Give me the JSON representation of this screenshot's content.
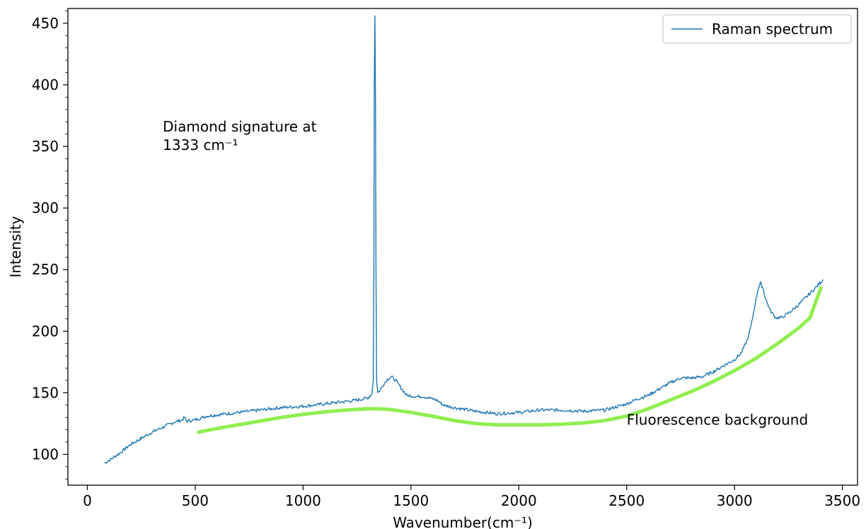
{
  "chart_data": {
    "type": "line",
    "title": "",
    "xlabel": "Wavenumber(cm⁻¹)",
    "ylabel": "Intensity",
    "xlim": [
      -90,
      3570
    ],
    "ylim": [
      75,
      462
    ],
    "xticks": [
      0,
      500,
      1000,
      1500,
      2000,
      2500,
      3000,
      3500
    ],
    "yticks": [
      100,
      150,
      200,
      250,
      300,
      350,
      400,
      450
    ],
    "grid": false,
    "legend_position": "top-right",
    "series": [
      {
        "name": "Raman spectrum",
        "color": "#1f77b4",
        "x": [
          80,
          100,
          150,
          200,
          250,
          300,
          350,
          400,
          440,
          450,
          460,
          500,
          550,
          600,
          700,
          800,
          900,
          1000,
          1100,
          1200,
          1250,
          1300,
          1310,
          1320,
          1325,
          1328,
          1330,
          1333,
          1336,
          1338,
          1341,
          1346,
          1355,
          1370,
          1390,
          1410,
          1430,
          1450,
          1480,
          1520,
          1560,
          1600,
          1620,
          1650,
          1700,
          1800,
          1900,
          2000,
          2100,
          2200,
          2300,
          2400,
          2500,
          2550,
          2600,
          2650,
          2700,
          2750,
          2800,
          2850,
          2900,
          2950,
          3000,
          3030,
          3060,
          3080,
          3095,
          3110,
          3120,
          3130,
          3145,
          3165,
          3190,
          3220,
          3260,
          3300,
          3340,
          3380,
          3410
        ],
        "y": [
          93,
          95,
          101,
          108,
          113,
          118,
          122,
          126,
          128,
          130,
          127,
          128,
          131,
          132,
          134,
          136,
          138,
          139,
          141,
          143,
          144,
          146,
          147,
          150,
          160,
          250,
          400,
          456,
          380,
          250,
          160,
          150,
          152,
          156,
          161,
          163,
          160,
          155,
          148,
          147,
          147,
          145,
          144,
          140,
          138,
          135,
          133,
          134,
          136,
          136,
          135,
          136,
          141,
          145,
          148,
          153,
          158,
          162,
          162,
          163,
          167,
          172,
          177,
          182,
          193,
          207,
          222,
          235,
          239,
          236,
          226,
          217,
          211,
          211,
          216,
          222,
          229,
          236,
          242
        ]
      },
      {
        "name": "",
        "color": "#90ee50",
        "x": [
          515,
          600,
          700,
          800,
          900,
          1000,
          1100,
          1200,
          1300,
          1350,
          1400,
          1500,
          1600,
          1700,
          1800,
          1900,
          2000,
          2100,
          2200,
          2300,
          2400,
          2500,
          2600,
          2700,
          2800,
          2900,
          3000,
          3100,
          3200,
          3300,
          3350,
          3400
        ],
        "y": [
          118,
          121,
          124,
          127,
          130,
          132.5,
          134.5,
          136,
          137,
          137,
          136.5,
          134,
          131,
          127.5,
          125,
          124,
          124,
          124,
          124.5,
          125.5,
          127.5,
          131,
          137,
          144,
          151,
          159,
          168,
          178,
          190,
          203,
          211,
          235
        ]
      }
    ],
    "annotations": [
      {
        "lines": [
          "Diamond signature at",
          "1333 cm⁻¹"
        ],
        "x": 350,
        "y": 362
      },
      {
        "text": "Fluorescence background",
        "x": 2500,
        "y": 124
      }
    ]
  }
}
